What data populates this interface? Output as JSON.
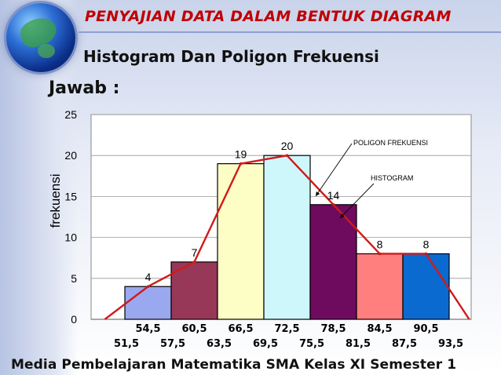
{
  "header": {
    "title": "PENYAJIAN DATA DALAM BENTUK DIAGRAM",
    "subtitle": "Histogram Dan Poligon Frekuensi",
    "answer_label": "Jawab :"
  },
  "footer": {
    "text": "Media Pembelajaran Matematika SMA Kelas XI Semester 1"
  },
  "colors": {
    "title": "#c00000",
    "polygon_line": "#d11a1a",
    "bars": [
      "#9aa8f0",
      "#973858",
      "#fdfdc6",
      "#cdf7fb",
      "#6e0b5f",
      "#ff7f7f",
      "#0a6ad0"
    ]
  },
  "chart_data": {
    "type": "bar",
    "ylabel": "frekuensi",
    "ylim": [
      0,
      25
    ],
    "yticks": [
      "0",
      "5",
      "10",
      "15",
      "20",
      "25"
    ],
    "categories": [
      "54,5",
      "60,5",
      "66,5",
      "72,5",
      "78,5",
      "84,5",
      "90,5"
    ],
    "boundaries": [
      "51,5",
      "57,5",
      "63,5",
      "69,5",
      "75,5",
      "81,5",
      "87,5",
      "93,5"
    ],
    "values": [
      4,
      7,
      19,
      20,
      14,
      8,
      8
    ],
    "value_labels": [
      "4",
      "7",
      "19",
      "20",
      "14",
      "8",
      "8"
    ],
    "grid": true,
    "annotations": [
      {
        "text": "POLIGON FREKUENSI",
        "target": "polygon"
      },
      {
        "text": "HISTOGRAM",
        "target": "histogram"
      }
    ]
  }
}
